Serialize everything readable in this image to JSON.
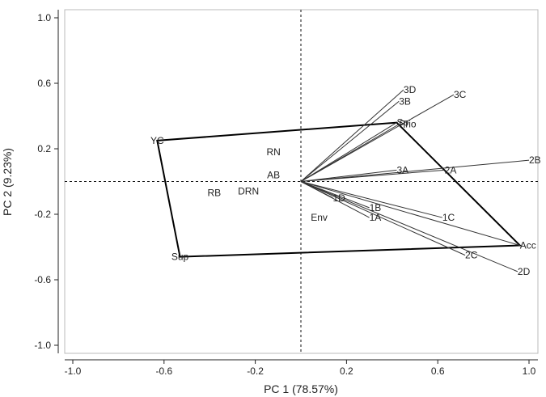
{
  "chart_data": {
    "type": "scatter",
    "subtype": "biplot",
    "title": "",
    "xlabel": "PC 1 (78.57%)",
    "ylabel": "PC 2 (9.23%)",
    "xlim": [
      -1.05,
      1.02
    ],
    "ylim": [
      -1.05,
      1.02
    ],
    "xticks": [
      -1.0,
      -0.6,
      -0.2,
      0.2,
      0.6,
      1.0
    ],
    "xtick_labels": [
      "-1.0",
      "-0.6",
      "-0.2",
      "0.2",
      "0.6",
      "1.0"
    ],
    "yticks": [
      -1.0,
      -0.6,
      -0.2,
      0.2,
      0.6,
      1.0
    ],
    "ytick_labels": [
      "-1.0",
      "-0.6",
      "-0.2",
      "0.2",
      "0.6",
      "1.0"
    ],
    "grid": false,
    "reference_lines": {
      "x": 0,
      "y": 0,
      "style": "dashed"
    },
    "vectors": [
      {
        "label": "3D",
        "x": 0.45,
        "y": 0.56
      },
      {
        "label": "3B",
        "x": 0.43,
        "y": 0.49
      },
      {
        "label": "3C",
        "x": 0.67,
        "y": 0.53
      },
      {
        "label": "Prio",
        "x": 0.43,
        "y": 0.35
      },
      {
        "label": "Sp",
        "x": 0.42,
        "y": 0.36
      },
      {
        "label": "2B",
        "x": 1.0,
        "y": 0.13
      },
      {
        "label": "2A",
        "x": 0.63,
        "y": 0.07
      },
      {
        "label": "3A",
        "x": 0.42,
        "y": 0.07
      },
      {
        "label": "1C",
        "x": 0.62,
        "y": -0.22
      },
      {
        "label": "1B",
        "x": 0.3,
        "y": -0.16
      },
      {
        "label": "1A",
        "x": 0.3,
        "y": -0.22
      },
      {
        "label": "1D",
        "x": 0.14,
        "y": -0.1
      },
      {
        "label": "Acc",
        "x": 0.96,
        "y": -0.39
      },
      {
        "label": "2C",
        "x": 0.72,
        "y": -0.45
      },
      {
        "label": "2D",
        "x": 0.95,
        "y": -0.55
      }
    ],
    "points": [
      {
        "label": "YC",
        "x": -0.63,
        "y": 0.25
      },
      {
        "label": "RN",
        "x": -0.12,
        "y": 0.18
      },
      {
        "label": "AB",
        "x": -0.12,
        "y": 0.04
      },
      {
        "label": "RB",
        "x": -0.38,
        "y": -0.07
      },
      {
        "label": "DRN",
        "x": -0.23,
        "y": -0.06
      },
      {
        "label": "Env",
        "x": 0.08,
        "y": -0.22
      },
      {
        "label": "Sup",
        "x": -0.53,
        "y": -0.46
      }
    ],
    "hull": [
      "YC",
      "Sp",
      "Acc",
      "Sup"
    ],
    "hull_points": [
      {
        "x": -0.63,
        "y": 0.25
      },
      {
        "x": 0.42,
        "y": 0.36
      },
      {
        "x": 0.96,
        "y": -0.39
      },
      {
        "x": -0.53,
        "y": -0.46
      }
    ]
  }
}
